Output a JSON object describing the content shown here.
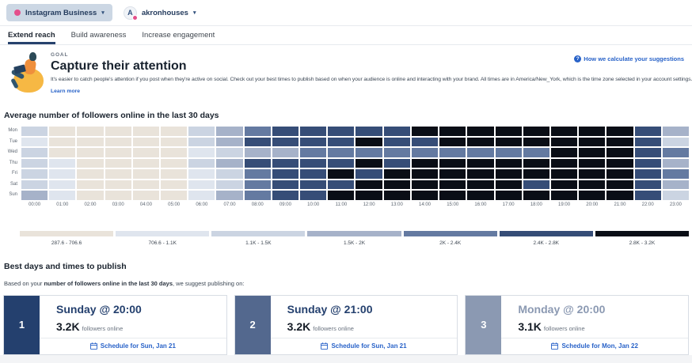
{
  "header": {
    "network_selector": {
      "label": "Instagram Business",
      "chevron": "▾"
    },
    "account_selector": {
      "label": "akronhouses",
      "avatar_letter": "A",
      "chevron": "▾"
    }
  },
  "tabs": [
    {
      "label": "Extend reach",
      "active": true
    },
    {
      "label": "Build awareness",
      "active": false
    },
    {
      "label": "Increase engagement",
      "active": false
    }
  ],
  "goal": {
    "eyebrow": "GOAL",
    "title": "Capture their attention",
    "description": "It's easier to catch people's attention if you post when they're active on social. Check out your best times to publish based on when your audience is online and interacting with your brand. All times are in America/New_York, which is the time zone selected in your account settings.",
    "learn_more": "Learn more",
    "help_icon": "?",
    "help_link": "How we calculate your suggestions"
  },
  "chart_data": {
    "type": "heatmap",
    "title": "Average number of followers online in the last 30 days",
    "rows": [
      "Mon",
      "Tue",
      "Wed",
      "Thu",
      "Fri",
      "Sat",
      "Sun"
    ],
    "columns": [
      "00:00",
      "01:00",
      "02:00",
      "03:00",
      "04:00",
      "05:00",
      "06:00",
      "07:00",
      "08:00",
      "09:00",
      "10:00",
      "11:00",
      "12:00",
      "13:00",
      "14:00",
      "15:00",
      "16:00",
      "17:00",
      "18:00",
      "19:00",
      "20:00",
      "21:00",
      "22:00",
      "23:00"
    ],
    "bins": [
      {
        "label": "287.6 - 706.6",
        "color": "#e9e3da"
      },
      {
        "label": "706.6 - 1.1K",
        "color": "#dfe5ee"
      },
      {
        "label": "1.1K - 1.5K",
        "color": "#cbd4e2"
      },
      {
        "label": "1.5K - 2K",
        "color": "#a6b2c9"
      },
      {
        "label": "2K - 2.4K",
        "color": "#647aa1"
      },
      {
        "label": "2.4K - 2.8K",
        "color": "#364d77"
      },
      {
        "label": "2.8K - 3.2K",
        "color": "#0a0e16"
      }
    ],
    "grid": [
      [
        3,
        1,
        1,
        1,
        1,
        1,
        3,
        4,
        5,
        6,
        6,
        6,
        6,
        6,
        7,
        7,
        7,
        7,
        7,
        7,
        7,
        7,
        6,
        4
      ],
      [
        2,
        1,
        1,
        1,
        1,
        1,
        3,
        4,
        6,
        6,
        6,
        6,
        7,
        6,
        6,
        7,
        7,
        7,
        7,
        7,
        7,
        7,
        6,
        3
      ],
      [
        3,
        1,
        1,
        1,
        1,
        1,
        2,
        3,
        4,
        4,
        5,
        5,
        5,
        5,
        5,
        5,
        5,
        5,
        5,
        7,
        7,
        7,
        6,
        5
      ],
      [
        3,
        2,
        1,
        1,
        1,
        1,
        3,
        4,
        6,
        6,
        6,
        6,
        7,
        6,
        7,
        7,
        7,
        7,
        7,
        7,
        7,
        7,
        6,
        4
      ],
      [
        3,
        2,
        1,
        1,
        1,
        1,
        2,
        3,
        5,
        6,
        6,
        7,
        6,
        7,
        7,
        7,
        7,
        7,
        7,
        7,
        7,
        7,
        6,
        5
      ],
      [
        3,
        2,
        1,
        1,
        1,
        1,
        2,
        3,
        5,
        6,
        6,
        6,
        7,
        7,
        7,
        7,
        7,
        7,
        6,
        7,
        7,
        7,
        6,
        4
      ],
      [
        4,
        2,
        1,
        1,
        1,
        1,
        2,
        4,
        5,
        6,
        6,
        7,
        7,
        7,
        7,
        7,
        7,
        7,
        7,
        7,
        7,
        7,
        6,
        3
      ]
    ]
  },
  "suggestions": {
    "heading": "Best days and times to publish",
    "intro_prefix": "Based on your ",
    "intro_bold": "number of followers online in the last 30 days",
    "intro_suffix": ", we suggest publishing on:",
    "cards": [
      {
        "rank": "1",
        "title": "Sunday @ 20:00",
        "value": "3.2K",
        "value_label": "followers online",
        "cta": "Schedule for Sun, Jan 21",
        "accent": "#24406e",
        "title_color": "#24406e"
      },
      {
        "rank": "2",
        "title": "Sunday @ 21:00",
        "value": "3.2K",
        "value_label": "followers online",
        "cta": "Schedule for Sun, Jan 21",
        "accent": "#53688e",
        "title_color": "#24406e"
      },
      {
        "rank": "3",
        "title": "Monday @ 20:00",
        "value": "3.1K",
        "value_label": "followers online",
        "cta": "Schedule for Mon, Jan 22",
        "accent": "#8b99b2",
        "title_color": "#8b99b2"
      }
    ]
  }
}
